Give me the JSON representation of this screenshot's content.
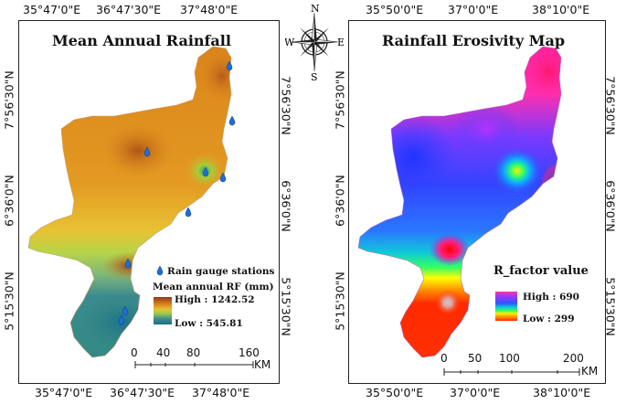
{
  "left_map": {
    "title": "Mean Annual Rainfall",
    "top_ticks": [
      "35°47'0\"E",
      "36°47'30\"E",
      "37°48'0\"E"
    ],
    "bottom_ticks": [
      "35°47'0\"E",
      "36°47'30\"E",
      "37°48'0\"E"
    ],
    "left_ticks": [
      "7°56'30\"N",
      "6°36'0\"N",
      "5°15'30\"N"
    ],
    "right_ticks": [
      "7°56'30\"N",
      "6°36'0\"N",
      "5°15'30\"N"
    ],
    "legend": {
      "station_label": "Rain gauge stations",
      "ramp_title": "Mean annual RF (mm)",
      "high_label": "High : 1242.52",
      "low_label": "Low : 545.81"
    },
    "scalebar": {
      "labels": [
        "0",
        "40",
        "80",
        "160"
      ],
      "unit": "KM"
    }
  },
  "right_map": {
    "title": "Rainfall Erosivity Map",
    "top_ticks": [
      "35°50'0\"E",
      "37°0'0\"E",
      "38°10'0\"E"
    ],
    "bottom_ticks": [
      "35°50'0\"E",
      "37°0'0\"E",
      "38°10'0\"E"
    ],
    "left_ticks": [
      "7°56'30\"N",
      "6°36'0\"N",
      "5°15'30\"N"
    ],
    "right_ticks": [
      "7°56'30\"N",
      "6°36'0\"N",
      "5°15'30\"N"
    ],
    "legend": {
      "ramp_title": "R_factor value",
      "high_label": "High : 690",
      "low_label": "Low : 299"
    },
    "scalebar": {
      "labels": [
        "0",
        "50",
        "100",
        "200"
      ],
      "unit": "KM"
    }
  },
  "compass": {
    "n": "N",
    "s": "S",
    "e": "E",
    "w": "W"
  },
  "colors": {
    "rain_high": "#8b3a1a",
    "rain_mid": "#e8a020",
    "rain_low": "#1a6e8a",
    "r_high": "#ff33aa",
    "r_low": "#ff2a00"
  }
}
